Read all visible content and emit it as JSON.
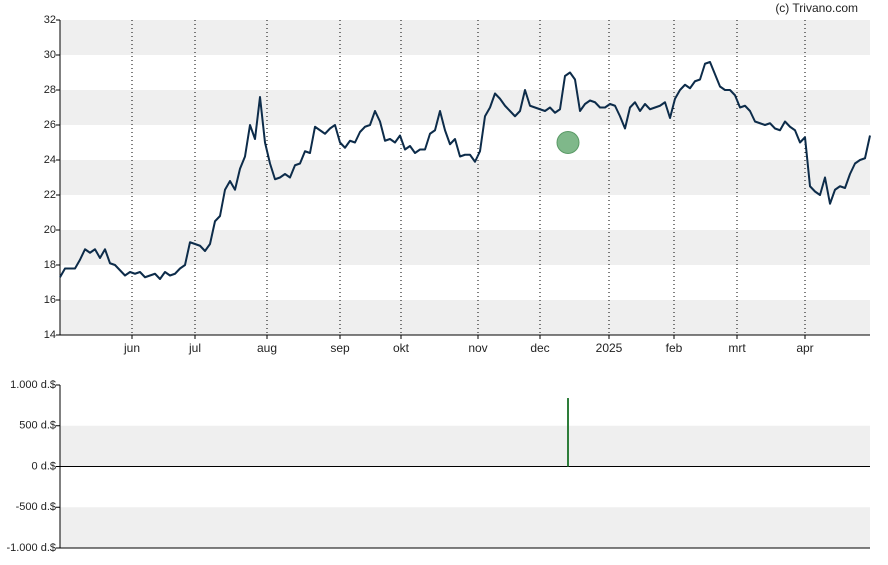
{
  "chart_data": [
    {
      "type": "line",
      "source": "(c) Trivano.com",
      "xlim": [
        0,
        162
      ],
      "xticks": [
        {
          "value": 14.4,
          "label": "jun"
        },
        {
          "value": 27,
          "label": "jul"
        },
        {
          "value": 41.4,
          "label": "aug"
        },
        {
          "value": 56,
          "label": "sep"
        },
        {
          "value": 68.2,
          "label": "okt"
        },
        {
          "value": 83.6,
          "label": "nov"
        },
        {
          "value": 96,
          "label": "dec"
        },
        {
          "value": 109.8,
          "label": "2025"
        },
        {
          "value": 122.8,
          "label": "feb"
        },
        {
          "value": 135.4,
          "label": "mrt"
        },
        {
          "value": 149,
          "label": "apr"
        }
      ],
      "ylim": [
        14,
        32
      ],
      "yticks": [
        14,
        16,
        18,
        20,
        22,
        24,
        26,
        28,
        30,
        32
      ],
      "bands": true,
      "grid": true,
      "series": [
        {
          "color": "#0d2c4a",
          "values": [
            17.3,
            17.8,
            17.8,
            17.8,
            18.3,
            18.9,
            18.7,
            18.9,
            18.4,
            18.9,
            18.1,
            18.0,
            17.7,
            17.4,
            17.6,
            17.5,
            17.6,
            17.3,
            17.4,
            17.5,
            17.2,
            17.6,
            17.4,
            17.5,
            17.8,
            18.0,
            19.3,
            19.2,
            19.1,
            18.8,
            19.2,
            20.5,
            20.8,
            22.3,
            22.8,
            22.3,
            23.5,
            24.2,
            26.0,
            25.2,
            27.6,
            25.0,
            23.8,
            22.9,
            23.0,
            23.2,
            23.0,
            23.7,
            23.8,
            24.5,
            24.4,
            25.9,
            25.7,
            25.5,
            25.8,
            26.0,
            25.0,
            24.7,
            25.1,
            25.0,
            25.6,
            25.9,
            26.0,
            26.8,
            26.2,
            25.1,
            25.2,
            25.0,
            25.4,
            24.6,
            24.8,
            24.4,
            24.6,
            24.6,
            25.5,
            25.7,
            26.8,
            25.7,
            24.9,
            25.2,
            24.2,
            24.3,
            24.3,
            23.9,
            24.5,
            26.5,
            27.0,
            27.8,
            27.5,
            27.1,
            26.8,
            26.5,
            26.8,
            28.0,
            27.1,
            27.0,
            26.9,
            26.8,
            27.0,
            26.7,
            26.9,
            28.8,
            29.0,
            28.6,
            26.8,
            27.2,
            27.4,
            27.3,
            27.0,
            27.0,
            27.2,
            27.1,
            26.5,
            25.8,
            27.0,
            27.3,
            26.8,
            27.2,
            26.9,
            27.0,
            27.1,
            27.3,
            26.4,
            27.5,
            28.0,
            28.3,
            28.1,
            28.5,
            28.6,
            29.5,
            29.6,
            28.9,
            28.2,
            28.0,
            28.0,
            27.7,
            27.0,
            27.1,
            26.8,
            26.2,
            26.1,
            26.0,
            26.1,
            25.8,
            25.7,
            26.2,
            25.9,
            25.7,
            25.0,
            25.3,
            22.5,
            22.2,
            22.0,
            23.0,
            21.5,
            22.3,
            22.5,
            22.4,
            23.2,
            23.8,
            24.0,
            24.1,
            25.4
          ]
        }
      ],
      "markers": [
        {
          "x": 101.6,
          "y": 25,
          "color": "#7fb88a"
        }
      ]
    },
    {
      "type": "bar",
      "xlim": [
        0,
        162
      ],
      "x": [
        101.6
      ],
      "values": [
        840
      ],
      "color": "#2e7d3a",
      "ylim": [
        -1000,
        1000
      ],
      "yticks": [
        {
          "value": -1000,
          "label": "-1.000 d.$"
        },
        {
          "value": -500,
          "label": "-500 d.$"
        },
        {
          "value": 0,
          "label": "0 d.$"
        },
        {
          "value": 500,
          "label": "500 d.$"
        },
        {
          "value": 1000,
          "label": "1.000 d.$"
        }
      ],
      "bands": true
    }
  ]
}
